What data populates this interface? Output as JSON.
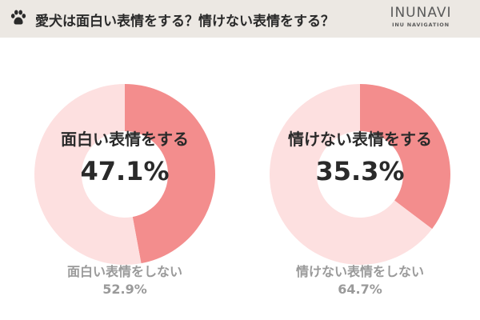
{
  "header": {
    "title": "愛犬は面白い表情をする？情けない表情をする？",
    "brand": "INUNAVI",
    "brand_sub": "INU NAVIGATION"
  },
  "colors": {
    "primary": "#f38d8d",
    "secondary": "#fde0e0",
    "header_bg": "#ece8e3"
  },
  "chart_data": [
    {
      "type": "pie",
      "donut": true,
      "categories": [
        "面白い表情をする",
        "面白い表情をしない"
      ],
      "values": [
        47.1,
        52.9
      ],
      "labels": [
        "47.1%",
        "52.9%"
      ]
    },
    {
      "type": "pie",
      "donut": true,
      "categories": [
        "情けない表情をする",
        "情けない表情をしない"
      ],
      "values": [
        35.3,
        64.7
      ],
      "labels": [
        "35.3%",
        "64.7%"
      ]
    }
  ]
}
